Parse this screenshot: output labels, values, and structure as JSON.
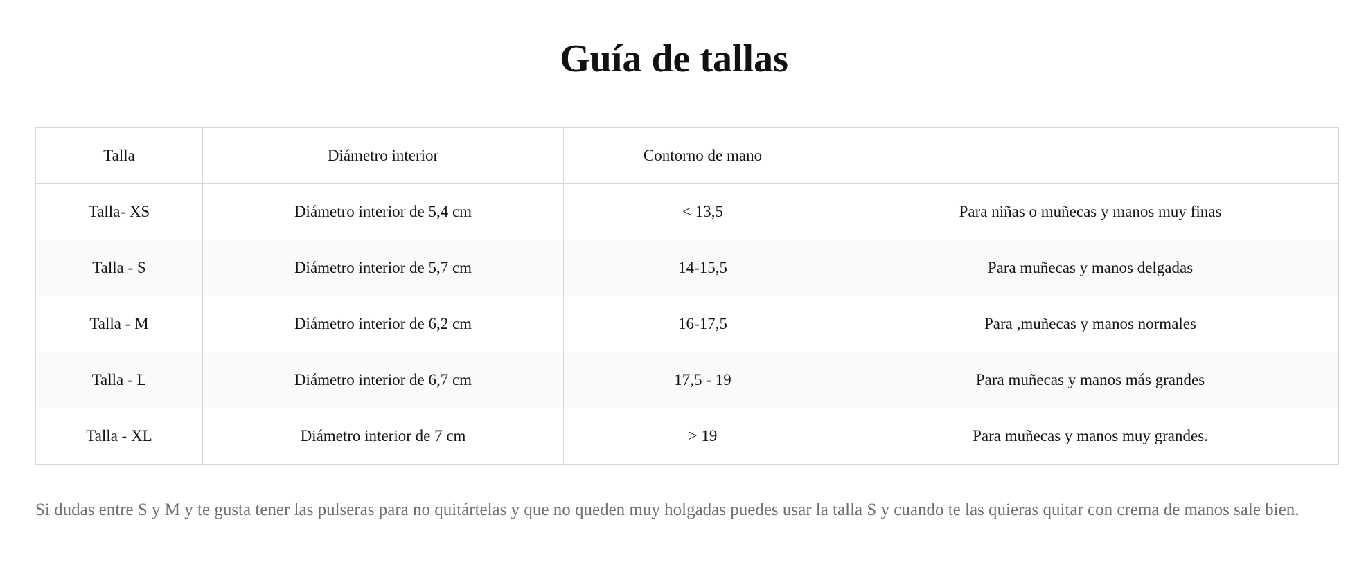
{
  "title": "Guía de tallas",
  "table": {
    "headers": [
      "Talla",
      "Diámetro interior",
      "Contorno de mano",
      ""
    ],
    "rows": [
      [
        "Talla- XS",
        "Diámetro interior de 5,4 cm",
        "< 13,5",
        "Para niñas o muñecas y manos muy finas"
      ],
      [
        "Talla - S",
        "Diámetro interior de 5,7 cm",
        "14-15,5",
        "Para muñecas y manos delgadas"
      ],
      [
        "Talla - M",
        "Diámetro interior de 6,2 cm",
        "16-17,5",
        "Para ,muñecas y manos normales"
      ],
      [
        "Talla - L",
        "Diámetro interior de 6,7 cm",
        "17,5 - 19",
        "Para muñecas y manos más grandes"
      ],
      [
        "Talla - XL",
        "Diámetro interior de 7 cm",
        "> 19",
        "Para muñecas y manos muy grandes."
      ]
    ]
  },
  "note": "Si dudas entre S y M y te gusta tener las pulseras para no quitártelas y que no queden muy holgadas puedes usar la talla S y cuando te las quieras quitar con crema de manos sale bien.",
  "colors": {
    "text": "#111111",
    "note": "#707070",
    "border": "#d6d6d6",
    "row_alt": "#fafafa"
  }
}
